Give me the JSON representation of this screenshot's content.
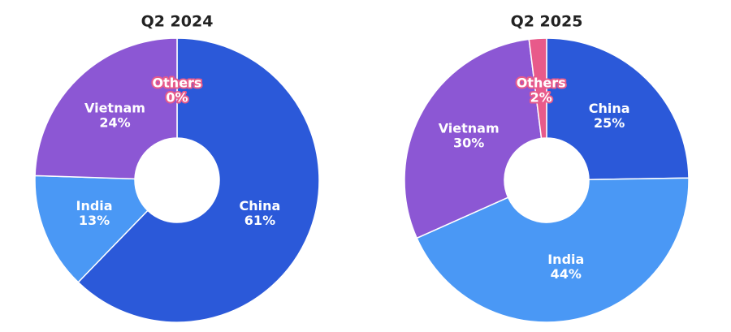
{
  "chart_data": [
    {
      "type": "pie",
      "title": "Q2 2024",
      "categories": [
        "China",
        "India",
        "Vietnam",
        "Others"
      ],
      "values": [
        61,
        13,
        24,
        0
      ],
      "value_labels": [
        "61%",
        "13%",
        "24%",
        "0%"
      ],
      "colors": [
        "#2b59d9",
        "#4a98f5",
        "#8c57d4",
        "#e85a8a"
      ]
    },
    {
      "type": "pie",
      "title": "Q2 2025",
      "categories": [
        "China",
        "India",
        "Vietnam",
        "Others"
      ],
      "values": [
        25,
        44,
        30,
        2
      ],
      "value_labels": [
        "25%",
        "44%",
        "30%",
        "2%"
      ],
      "colors": [
        "#2b59d9",
        "#4a98f5",
        "#8c57d4",
        "#e85a8a"
      ]
    }
  ]
}
